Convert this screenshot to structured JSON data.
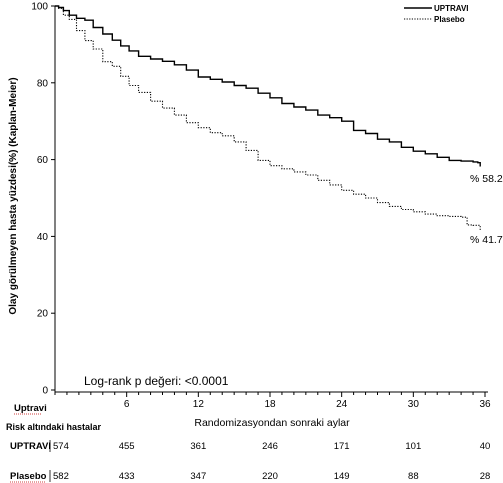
{
  "chart_data": {
    "type": "line",
    "ylabel": "Olay görülmeyen hasta yüzdesi(%) (Kaplan-Meier)",
    "xlabel": "Randomizasyondan sonraki aylar",
    "xlim": [
      0,
      36
    ],
    "ylim": [
      0,
      100
    ],
    "x_ticks": [
      6,
      12,
      18,
      24,
      30,
      36
    ],
    "y_ticks": [
      0,
      20,
      40,
      60,
      80,
      100
    ],
    "legend_position": "top-right",
    "annotation": "Log-rank p değeri: <0.0001",
    "series": [
      {
        "name": "UPTRAVI",
        "style": "solid",
        "color": "#000000",
        "end_label": "% 58.2",
        "x": [
          0,
          0.3,
          0.7,
          1.2,
          1.8,
          2.5,
          3.2,
          4,
          4.8,
          5.5,
          6.2,
          7,
          8,
          9,
          10,
          11,
          12,
          13,
          14,
          15,
          16,
          17,
          18,
          19,
          20,
          21,
          22,
          23,
          24,
          25,
          26,
          27,
          28,
          29,
          30,
          31,
          32,
          33,
          34,
          35,
          35.4,
          35.6
        ],
        "y": [
          100,
          99.6,
          98.8,
          97.6,
          96.8,
          96.3,
          94.4,
          92.7,
          91.1,
          89.6,
          88.3,
          86.9,
          86.2,
          85.6,
          84.7,
          83.3,
          81.5,
          80.9,
          80.2,
          79.3,
          78.6,
          77.3,
          76.1,
          74.6,
          73.7,
          72.9,
          71.6,
          70.9,
          70.0,
          67.6,
          66.8,
          65.3,
          64.6,
          63.2,
          62.2,
          61.5,
          60.6,
          59.8,
          59.6,
          59.4,
          59.2,
          58.2
        ]
      },
      {
        "name": "Plasebo",
        "style": "dotted",
        "color": "#000000",
        "end_label": "% 41.7",
        "x": [
          0,
          0.3,
          0.7,
          1.2,
          1.8,
          2.5,
          3.2,
          4,
          4.8,
          5.5,
          6.2,
          7,
          8,
          9,
          10,
          11,
          12,
          13,
          14,
          15,
          16,
          17,
          18,
          19,
          20,
          21,
          22,
          23,
          24,
          25,
          26,
          27,
          28,
          29,
          30,
          31,
          32,
          33,
          34,
          34.5,
          35,
          35.6
        ],
        "y": [
          100,
          99.4,
          97.6,
          96.5,
          93.6,
          91.0,
          88.8,
          85.5,
          84.3,
          81.7,
          79.3,
          77.5,
          75.2,
          73.4,
          71.6,
          69.6,
          68.3,
          67.0,
          66.2,
          64.6,
          62.4,
          59.8,
          58.4,
          57.6,
          56.8,
          56.0,
          54.6,
          53.4,
          52.0,
          51.0,
          50.0,
          48.8,
          47.8,
          47.0,
          46.4,
          45.8,
          45.4,
          45.2,
          45.0,
          43.0,
          42.9,
          41.7
        ]
      }
    ]
  },
  "risk_table": {
    "uptravi_header": "Uptravi",
    "title": "Risk altındaki hastalar",
    "rows": [
      {
        "label": "UPTRAVI",
        "values": [
          574,
          455,
          361,
          246,
          171,
          101,
          40
        ]
      },
      {
        "label": "Plasebo",
        "values": [
          582,
          433,
          347,
          220,
          149,
          88,
          28
        ]
      }
    ]
  }
}
